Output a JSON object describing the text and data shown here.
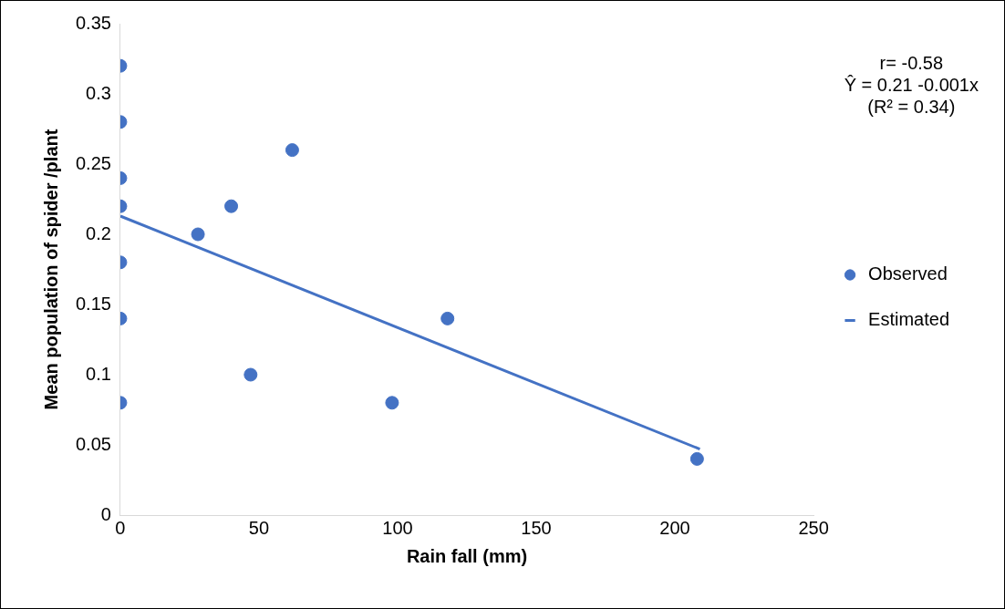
{
  "chart_data": {
    "type": "scatter",
    "xlabel": "Rain fall (mm)",
    "ylabel": "Mean population of spider /plant",
    "xlim": [
      0,
      250
    ],
    "xticks": [
      0,
      50,
      100,
      150,
      200,
      250
    ],
    "ylim": [
      0,
      0.35
    ],
    "yticks": [
      0,
      0.05,
      0.1,
      0.15,
      0.2,
      0.25,
      0.3,
      0.35
    ],
    "grid": false,
    "legend": "right",
    "annotations": [
      "r= -0.58",
      "Ŷ = 0.21 -0.001x",
      "(R² = 0.34)"
    ],
    "series": [
      {
        "name": "Observed",
        "marker": "circle",
        "color": "#4472c4",
        "x": [
          0,
          0,
          0,
          0,
          0,
          0,
          0,
          28,
          40,
          62,
          47,
          98,
          118,
          208
        ],
        "values": [
          0.32,
          0.28,
          0.24,
          0.22,
          0.18,
          0.14,
          0.08,
          0.2,
          0.22,
          0.26,
          0.1,
          0.08,
          0.14,
          0.04
        ]
      },
      {
        "name": "Estimated",
        "type": "line",
        "marker": "none",
        "color": "#4472c4",
        "x": [
          0,
          209
        ],
        "values": [
          0.213,
          0.047
        ]
      }
    ]
  }
}
